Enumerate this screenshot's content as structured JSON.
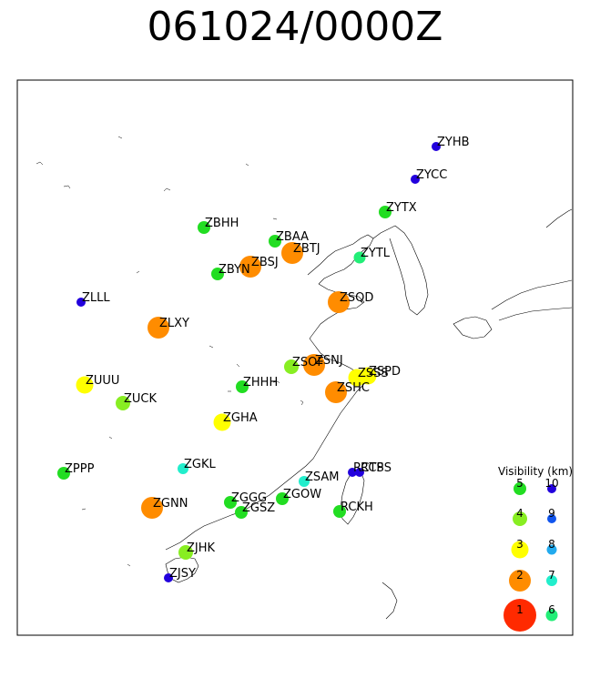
{
  "title": "061024/0000Z",
  "legend": {
    "title": "Visibility (km)",
    "items": [
      {
        "value": "1",
        "color": "#ff2a00"
      },
      {
        "value": "2",
        "color": "#ff8c00"
      },
      {
        "value": "3",
        "color": "#ffff00"
      },
      {
        "value": "4",
        "color": "#88ee22"
      },
      {
        "value": "5",
        "color": "#22dd22"
      },
      {
        "value": "6",
        "color": "#22ee77"
      },
      {
        "value": "7",
        "color": "#22eecc"
      },
      {
        "value": "8",
        "color": "#22aaee"
      },
      {
        "value": "9",
        "color": "#1155ee"
      },
      {
        "value": "10",
        "color": "#2200dd"
      }
    ]
  },
  "stations": [
    {
      "id": "ZYHB",
      "vis": 10
    },
    {
      "id": "ZYCC",
      "vis": 10
    },
    {
      "id": "ZYTX",
      "vis": 5
    },
    {
      "id": "ZBHH",
      "vis": 5
    },
    {
      "id": "ZBAA",
      "vis": 5
    },
    {
      "id": "ZBTJ",
      "vis": 2
    },
    {
      "id": "ZYTL",
      "vis": 6
    },
    {
      "id": "ZBSJ",
      "vis": 2
    },
    {
      "id": "ZBYN",
      "vis": 5
    },
    {
      "id": "ZSQD",
      "vis": 2
    },
    {
      "id": "ZLLL",
      "vis": 10
    },
    {
      "id": "ZLXY",
      "vis": 2
    },
    {
      "id": "ZSOF",
      "vis": 4
    },
    {
      "id": "ZSNJ",
      "vis": 2
    },
    {
      "id": "ZSSS",
      "vis": 3
    },
    {
      "id": "ZSPD",
      "vis": 3
    },
    {
      "id": "ZSHC",
      "vis": 2
    },
    {
      "id": "ZUUU",
      "vis": 3
    },
    {
      "id": "ZHHH",
      "vis": 5
    },
    {
      "id": "ZUCK",
      "vis": 4
    },
    {
      "id": "ZGHA",
      "vis": 3
    },
    {
      "id": "ZPPP",
      "vis": 5
    },
    {
      "id": "ZGKL",
      "vis": 7
    },
    {
      "id": "RCTP",
      "vis": 10
    },
    {
      "id": "RCSS",
      "vis": 10
    },
    {
      "id": "ZSAM",
      "vis": 7
    },
    {
      "id": "ZGNN",
      "vis": 2
    },
    {
      "id": "ZGGG",
      "vis": 5
    },
    {
      "id": "ZGOW",
      "vis": 5
    },
    {
      "id": "ZGSZ",
      "vis": 5
    },
    {
      "id": "RCKH",
      "vis": 5
    },
    {
      "id": "ZJHK",
      "vis": 4
    },
    {
      "id": "ZJSY",
      "vis": 10
    }
  ]
}
